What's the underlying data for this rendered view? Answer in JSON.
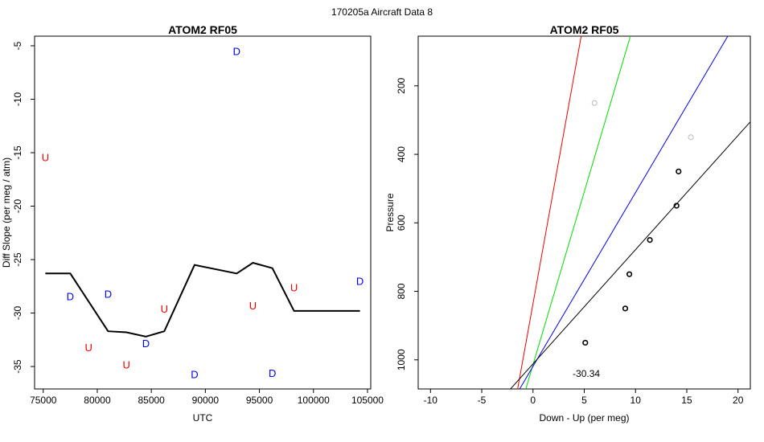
{
  "figure_title": "170205a   Aircraft Data 8",
  "colors": {
    "U": "#ee0000",
    "D": "#0000ee",
    "line": "#000000",
    "faded": "#bbbbbb"
  },
  "chart_data": [
    {
      "type": "scatter",
      "title": "ATOM2 RF05",
      "xlabel": "UTC",
      "ylabel": "Diff Slope (per meg / atm)",
      "xlim": [
        74200,
        105300
      ],
      "ylim": [
        -37.1,
        -4.1
      ],
      "xticks": [
        75000,
        80000,
        85000,
        90000,
        95000,
        100000,
        105000
      ],
      "yticks": [
        -35,
        -30,
        -25,
        -20,
        -15,
        -10,
        -5
      ],
      "grid": false,
      "legend": "none",
      "markers": [
        {
          "label": "U",
          "x": 75200,
          "y": -15.4
        },
        {
          "label": "D",
          "x": 77500,
          "y": -28.4
        },
        {
          "label": "U",
          "x": 79200,
          "y": -33.2
        },
        {
          "label": "D",
          "x": 81000,
          "y": -28.2
        },
        {
          "label": "U",
          "x": 82700,
          "y": -34.8
        },
        {
          "label": "D",
          "x": 84500,
          "y": -32.8
        },
        {
          "label": "U",
          "x": 86200,
          "y": -29.6
        },
        {
          "label": "D",
          "x": 89000,
          "y": -35.7
        },
        {
          "label": "D",
          "x": 92900,
          "y": -5.5
        },
        {
          "label": "U",
          "x": 94400,
          "y": -29.3
        },
        {
          "label": "D",
          "x": 96200,
          "y": -35.6
        },
        {
          "label": "U",
          "x": 98200,
          "y": -27.6
        },
        {
          "label": "D",
          "x": 104300,
          "y": -27.0
        }
      ],
      "line": {
        "x": [
          75200,
          77500,
          81000,
          82700,
          84500,
          86200,
          89000,
          92900,
          94400,
          96200,
          98200,
          104300
        ],
        "y": [
          -26.3,
          -26.3,
          -31.7,
          -31.8,
          -32.2,
          -31.7,
          -25.5,
          -26.3,
          -25.3,
          -25.8,
          -29.8,
          -29.8
        ]
      }
    },
    {
      "type": "scatter",
      "title": "ATOM2 RF05",
      "xlabel": "Down - Up (per meg)",
      "ylabel": "Pressure",
      "xlim": [
        -11.2,
        21.2
      ],
      "ylim": [
        1085,
        55
      ],
      "y_reversed": true,
      "xticks": [
        -10,
        -5,
        0,
        5,
        10,
        15,
        20
      ],
      "yticks": [
        200,
        400,
        600,
        800,
        1000
      ],
      "grid": false,
      "legend": "none",
      "annotation": "-30.34",
      "annotation_pos": {
        "x": 5.2,
        "y": 1040
      },
      "points": [
        {
          "x": 14.2,
          "y": 450
        },
        {
          "x": 14.0,
          "y": 550
        },
        {
          "x": 11.4,
          "y": 650
        },
        {
          "x": 9.4,
          "y": 750
        },
        {
          "x": 9.0,
          "y": 850
        },
        {
          "x": 5.1,
          "y": 950
        }
      ],
      "faded_points": [
        {
          "x": 6.0,
          "y": 250
        },
        {
          "x": 15.4,
          "y": 350
        }
      ],
      "lines": [
        {
          "color": "#ee0000",
          "from": {
            "x": -1.5,
            "y": 1085
          },
          "to": {
            "x": 4.7,
            "y": 55
          }
        },
        {
          "color": "#00dd00",
          "from": {
            "x": -0.7,
            "y": 1085
          },
          "to": {
            "x": 9.5,
            "y": 55
          }
        },
        {
          "color": "#0000ee",
          "from": {
            "x": -1.3,
            "y": 1085
          },
          "to": {
            "x": 19.0,
            "y": 55
          }
        },
        {
          "color": "#000000",
          "from": {
            "x": -2.2,
            "y": 1085
          },
          "to": {
            "x": 21.2,
            "y": 305
          }
        }
      ]
    }
  ]
}
